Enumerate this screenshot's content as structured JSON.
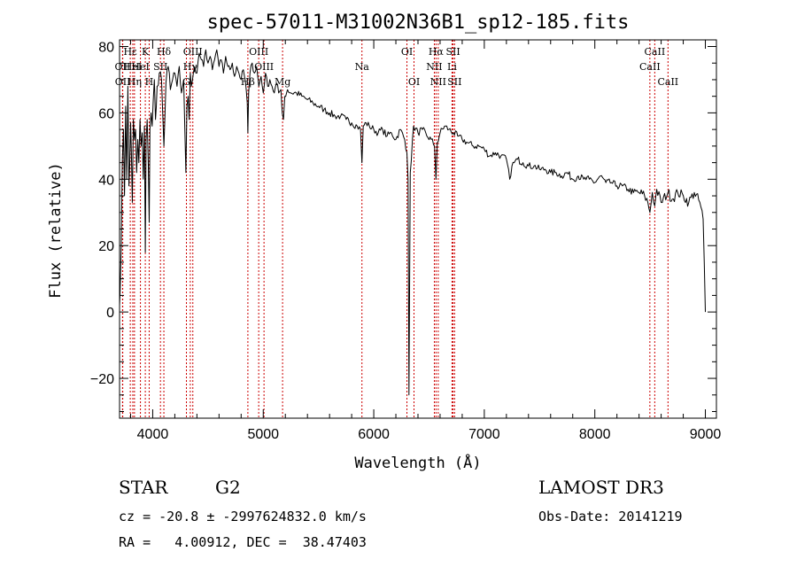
{
  "chart_data": {
    "type": "line",
    "title": "spec-57011-M31002N36B1_sp12-185.fits",
    "xlabel": "Wavelength (Å)",
    "ylabel": "Flux (relative)",
    "xlim": [
      3700,
      9100
    ],
    "ylim": [
      -32,
      82
    ],
    "xticks": [
      4000,
      5000,
      6000,
      7000,
      8000,
      9000
    ],
    "yticks": [
      -20,
      0,
      20,
      40,
      60,
      80
    ],
    "series": [
      {
        "name": "spectrum",
        "x": [
          3700,
          3705,
          3715,
          3725,
          3735,
          3745,
          3755,
          3765,
          3775,
          3785,
          3800,
          3815,
          3825,
          3835,
          3845,
          3855,
          3865,
          3875,
          3885,
          3895,
          3905,
          3915,
          3925,
          3933,
          3940,
          3950,
          3960,
          3968,
          3975,
          3985,
          3995,
          4005,
          4015,
          4025,
          4040,
          4060,
          4080,
          4101,
          4120,
          4140,
          4160,
          4180,
          4200,
          4220,
          4240,
          4260,
          4280,
          4300,
          4310,
          4320,
          4330,
          4340,
          4350,
          4360,
          4380,
          4400,
          4420,
          4440,
          4460,
          4480,
          4500,
          4520,
          4540,
          4560,
          4580,
          4600,
          4620,
          4640,
          4660,
          4680,
          4700,
          4720,
          4740,
          4760,
          4780,
          4800,
          4820,
          4840,
          4855,
          4861,
          4868,
          4880,
          4900,
          4920,
          4940,
          4960,
          4980,
          5000,
          5020,
          5040,
          5060,
          5080,
          5100,
          5120,
          5140,
          5160,
          5172,
          5183,
          5195,
          5220,
          5250,
          5300,
          5350,
          5400,
          5450,
          5500,
          5550,
          5600,
          5650,
          5700,
          5750,
          5800,
          5850,
          5880,
          5893,
          5905,
          5930,
          5960,
          6000,
          6040,
          6080,
          6120,
          6160,
          6200,
          6240,
          6280,
          6300,
          6310,
          6318,
          6330,
          6360,
          6400,
          6440,
          6480,
          6520,
          6550,
          6563,
          6575,
          6600,
          6640,
          6680,
          6720,
          6760,
          6800,
          6850,
          6900,
          6950,
          7000,
          7050,
          7100,
          7150,
          7200,
          7230,
          7250,
          7270,
          7300,
          7350,
          7400,
          7450,
          7500,
          7550,
          7600,
          7650,
          7700,
          7750,
          7800,
          7850,
          7900,
          7950,
          8000,
          8050,
          8100,
          8150,
          8200,
          8250,
          8300,
          8350,
          8400,
          8450,
          8480,
          8498,
          8520,
          8542,
          8560,
          8600,
          8662,
          8700,
          8750,
          8800,
          8850,
          8900,
          8950,
          8980,
          9000
        ],
        "y": [
          2,
          6,
          20,
          45,
          55,
          35,
          62,
          40,
          68,
          38,
          57,
          33,
          58,
          52,
          55,
          42,
          52,
          45,
          58,
          50,
          54,
          40,
          56,
          18,
          52,
          58,
          44,
          27,
          55,
          60,
          56,
          64,
          70,
          58,
          68,
          72,
          70,
          50,
          69,
          74,
          67,
          70,
          72,
          68,
          74,
          66,
          70,
          42,
          62,
          65,
          58,
          72,
          68,
          70,
          74,
          72,
          78,
          76,
          74,
          79,
          75,
          77,
          73,
          76,
          79,
          74,
          76,
          72,
          77,
          74,
          73,
          75,
          71,
          74,
          72,
          70,
          73,
          69,
          63,
          54,
          66,
          72,
          75,
          72,
          74,
          68,
          71,
          66,
          72,
          68,
          70,
          68,
          66,
          69,
          66,
          67,
          60,
          58,
          65,
          67,
          66,
          66,
          65,
          64,
          63,
          62,
          61,
          60,
          59,
          59,
          58,
          57,
          56,
          55,
          45,
          56,
          57,
          56,
          55,
          54,
          55,
          53,
          54,
          52,
          55,
          52,
          48,
          40,
          -25,
          42,
          56,
          54,
          55,
          53,
          52,
          50,
          40,
          51,
          54,
          56,
          55,
          54,
          53,
          52,
          51,
          50,
          50,
          49,
          47,
          48,
          47,
          46,
          40,
          44,
          45,
          46,
          45,
          44,
          44,
          43,
          43,
          42,
          42,
          41,
          42,
          40,
          41,
          40,
          40,
          39,
          41,
          39,
          39,
          38,
          38,
          37,
          36,
          36,
          35,
          33,
          30,
          36,
          32,
          37,
          33,
          36,
          34,
          36,
          35,
          33,
          36,
          33,
          28,
          0
        ]
      }
    ],
    "lines": [
      {
        "name": "Hε",
        "x": 3797,
        "row": 1
      },
      {
        "name": "OII",
        "x": 3727,
        "row": 2
      },
      {
        "name": "OII",
        "x": 3729,
        "row": 3
      },
      {
        "name": "HeI",
        "x": 3820,
        "row": 2
      },
      {
        "name": "Hη",
        "x": 3835,
        "row": 3
      },
      {
        "name": "K",
        "x": 3933,
        "row": 1
      },
      {
        "name": "HeI",
        "x": 3889,
        "row": 2
      },
      {
        "name": "H",
        "x": 3968,
        "row": 3
      },
      {
        "name": "Hδ",
        "x": 4101,
        "row": 1
      },
      {
        "name": "SII",
        "x": 4070,
        "row": 2
      },
      {
        "name": "OIII",
        "x": 4363,
        "row": 1
      },
      {
        "name": "Hγ",
        "x": 4340,
        "row": 2
      },
      {
        "name": "G",
        "x": 4305,
        "row": 3
      },
      {
        "name": "OIII",
        "x": 4959,
        "row": 1
      },
      {
        "name": "OIII",
        "x": 5007,
        "row": 2
      },
      {
        "name": "Hβ",
        "x": 4861,
        "row": 3
      },
      {
        "name": "Mg",
        "x": 5175,
        "row": 3
      },
      {
        "name": "Na",
        "x": 5893,
        "row": 2
      },
      {
        "name": "OI",
        "x": 6300,
        "row": 1
      },
      {
        "name": "OI",
        "x": 6364,
        "row": 3
      },
      {
        "name": "Hα",
        "x": 6563,
        "row": 1
      },
      {
        "name": "NII",
        "x": 6548,
        "row": 2
      },
      {
        "name": "NII",
        "x": 6583,
        "row": 3
      },
      {
        "name": "SII",
        "x": 6717,
        "row": 1
      },
      {
        "name": "Li",
        "x": 6708,
        "row": 2
      },
      {
        "name": "SII",
        "x": 6731,
        "row": 3
      },
      {
        "name": "CaII",
        "x": 8542,
        "row": 1
      },
      {
        "name": "CaII",
        "x": 8498,
        "row": 2
      },
      {
        "name": "CaII",
        "x": 8662,
        "row": 3
      }
    ],
    "line_color": "#cc0000",
    "spectrum_color": "#000000"
  },
  "info": {
    "class": "STAR",
    "subclass": "G2",
    "cz": "cz = -20.8 ± -2997624832.0 km/s",
    "radec": "RA =   4.00912, DEC =  38.47403",
    "survey": "LAMOST DR3",
    "obsdate": "Obs-Date: 20141219"
  }
}
